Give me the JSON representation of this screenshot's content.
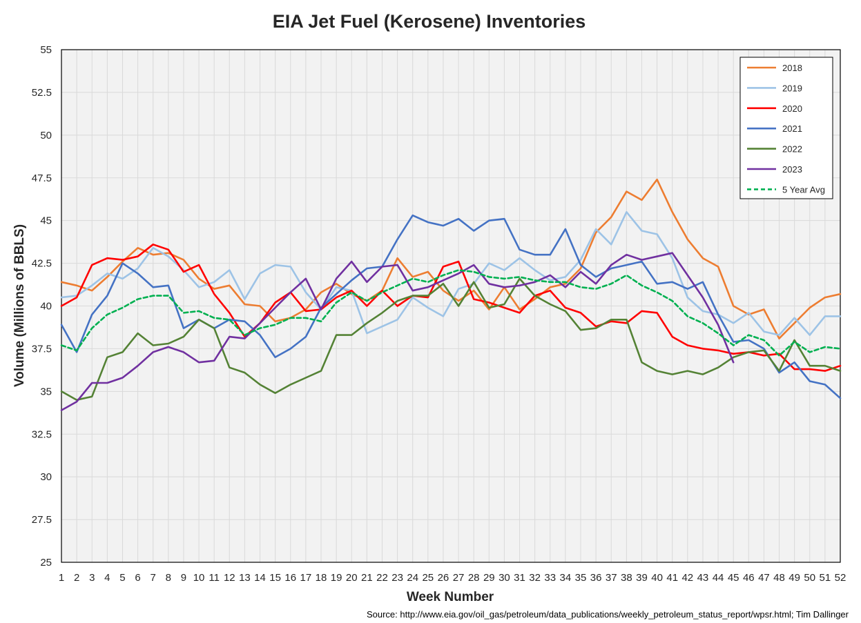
{
  "chart_data": {
    "type": "line",
    "title": "EIA Jet Fuel (Kerosene) Inventories",
    "xlabel": "Week Number",
    "ylabel": "Volume (Millions of BBLS)",
    "source": "Source: http://www.eia.gov/oil_gas/petroleum/data_publications/weekly_petroleum_status_report/wpsr.html; Tim Dallinger",
    "xlim": [
      1,
      52
    ],
    "ylim": [
      25,
      55
    ],
    "yticks": [
      "25",
      "27.5",
      "30",
      "32.5",
      "35",
      "37.5",
      "40",
      "42.5",
      "45",
      "47.5",
      "50",
      "52.5",
      "55"
    ],
    "grid": true,
    "legend_position": "top-right",
    "x": [
      1,
      2,
      3,
      4,
      5,
      6,
      7,
      8,
      9,
      10,
      11,
      12,
      13,
      14,
      15,
      16,
      17,
      18,
      19,
      20,
      21,
      22,
      23,
      24,
      25,
      26,
      27,
      28,
      29,
      30,
      31,
      32,
      33,
      34,
      35,
      36,
      37,
      38,
      39,
      40,
      41,
      42,
      43,
      44,
      45,
      46,
      47,
      48,
      49,
      50,
      51,
      52
    ],
    "series": [
      {
        "name": "2018",
        "color": "#ED7D31",
        "dashed": false,
        "values": [
          41.4,
          41.2,
          40.9,
          41.7,
          42.6,
          43.4,
          43.0,
          43.1,
          42.7,
          41.6,
          41.0,
          41.2,
          40.1,
          40.0,
          39.1,
          39.3,
          39.8,
          40.8,
          41.3,
          40.7,
          40.3,
          40.9,
          42.8,
          41.7,
          42.0,
          40.9,
          40.3,
          40.9,
          39.8,
          41.1,
          39.8,
          40.4,
          41.1,
          41.3,
          42.2,
          44.3,
          45.2,
          46.7,
          46.2,
          47.4,
          45.5,
          43.9,
          42.8,
          42.3,
          40.0,
          39.5,
          39.8,
          38.1,
          39.0,
          39.9,
          40.5,
          40.7
        ]
      },
      {
        "name": "2019",
        "color": "#9DC3E6",
        "dashed": false,
        "values": [
          40.5,
          40.6,
          41.2,
          41.9,
          41.6,
          42.2,
          43.4,
          42.9,
          42.1,
          41.1,
          41.4,
          42.1,
          40.4,
          41.9,
          42.4,
          42.3,
          40.8,
          39.8,
          41.1,
          40.9,
          38.4,
          38.8,
          39.2,
          40.5,
          39.9,
          39.4,
          41.0,
          41.3,
          42.5,
          42.1,
          42.8,
          42.1,
          41.5,
          41.7,
          42.7,
          44.5,
          43.6,
          45.5,
          44.4,
          44.2,
          42.8,
          40.5,
          39.7,
          39.5,
          39.0,
          39.6,
          38.5,
          38.3,
          39.3,
          38.3,
          39.4,
          39.4
        ]
      },
      {
        "name": "2020",
        "color": "#FF0000",
        "dashed": false,
        "values": [
          40.0,
          40.5,
          42.4,
          42.8,
          42.7,
          42.9,
          43.6,
          43.3,
          42.0,
          42.4,
          40.7,
          39.6,
          38.2,
          39.0,
          40.2,
          40.8,
          39.7,
          39.8,
          40.5,
          40.9,
          40.0,
          40.9,
          40.0,
          40.6,
          40.5,
          42.3,
          42.6,
          40.4,
          40.2,
          39.9,
          39.6,
          40.6,
          40.9,
          39.9,
          39.6,
          38.8,
          39.1,
          39.0,
          39.7,
          39.6,
          38.2,
          37.7,
          37.5,
          37.4,
          37.2,
          37.3,
          37.1,
          37.2,
          36.3,
          36.3,
          36.2,
          36.5
        ]
      },
      {
        "name": "2021",
        "color": "#4472C4",
        "dashed": false,
        "values": [
          38.9,
          37.3,
          39.5,
          40.6,
          42.5,
          41.9,
          41.1,
          41.2,
          38.7,
          39.2,
          38.7,
          39.2,
          39.1,
          38.3,
          37.0,
          37.5,
          38.2,
          39.9,
          40.7,
          41.5,
          42.2,
          42.3,
          43.9,
          45.3,
          44.9,
          44.7,
          45.1,
          44.4,
          45.0,
          45.1,
          43.3,
          43.0,
          43.0,
          44.5,
          42.4,
          41.7,
          42.2,
          42.4,
          42.6,
          41.3,
          41.4,
          41.0,
          41.4,
          39.5,
          37.9,
          38.0,
          37.5,
          36.1,
          36.7,
          35.6,
          35.4,
          34.6
        ]
      },
      {
        "name": "2022",
        "color": "#548235",
        "dashed": false,
        "values": [
          35.0,
          34.5,
          34.7,
          37.0,
          37.3,
          38.4,
          37.7,
          37.8,
          38.2,
          39.2,
          38.7,
          36.4,
          36.1,
          35.4,
          34.9,
          35.4,
          35.8,
          36.2,
          38.3,
          38.3,
          39.0,
          39.6,
          40.3,
          40.6,
          40.6,
          41.3,
          40.0,
          41.4,
          39.9,
          40.1,
          41.6,
          40.6,
          40.1,
          39.7,
          38.6,
          38.7,
          39.2,
          39.2,
          36.7,
          36.2,
          36.0,
          36.2,
          36.0,
          36.4,
          37.0,
          37.3,
          37.4,
          36.2,
          38.0,
          36.5,
          36.5,
          36.2
        ]
      },
      {
        "name": "2023",
        "color": "#7030A0",
        "dashed": false,
        "values": [
          33.9,
          34.4,
          35.5,
          35.5,
          35.8,
          36.5,
          37.3,
          37.6,
          37.3,
          36.7,
          36.8,
          38.2,
          38.1,
          39.0,
          39.9,
          40.8,
          41.6,
          39.8,
          41.6,
          42.6,
          41.4,
          42.3,
          42.4,
          40.9,
          41.1,
          41.5,
          41.9,
          42.4,
          41.3,
          41.1,
          41.2,
          41.4,
          41.8,
          41.1,
          42.0,
          41.3,
          42.4,
          43.0,
          42.7,
          42.9,
          43.1,
          41.8,
          40.5,
          38.9,
          36.7,
          null,
          null,
          null,
          null,
          null,
          null,
          null
        ]
      },
      {
        "name": "5 Year Avg",
        "color": "#00B050",
        "dashed": true,
        "values": [
          37.7,
          37.4,
          38.7,
          39.5,
          39.9,
          40.4,
          40.6,
          40.6,
          39.6,
          39.7,
          39.3,
          39.2,
          38.3,
          38.7,
          38.9,
          39.3,
          39.3,
          39.1,
          40.2,
          40.8,
          40.3,
          40.8,
          41.2,
          41.6,
          41.4,
          41.8,
          42.1,
          42.0,
          41.7,
          41.6,
          41.7,
          41.5,
          41.4,
          41.4,
          41.1,
          41.0,
          41.3,
          41.8,
          41.2,
          40.8,
          40.3,
          39.4,
          39.0,
          38.4,
          37.7,
          38.3,
          38.0,
          37.1,
          37.9,
          37.3,
          37.6,
          37.5
        ]
      }
    ]
  }
}
